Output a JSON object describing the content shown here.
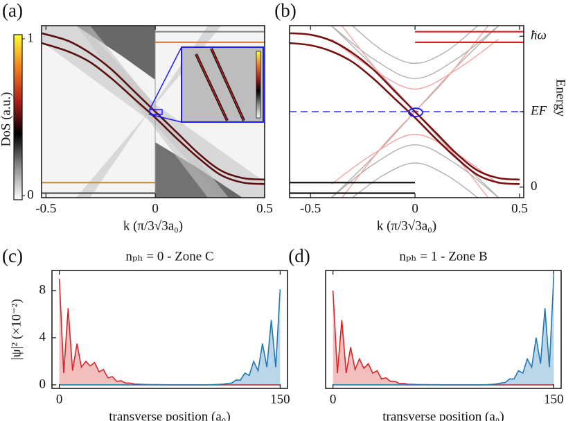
{
  "chart_data": [
    {
      "type": "heatmap-bands",
      "panel_label": "(a)",
      "xlabel": "k (π/3√3a₀)",
      "xlim": [
        -0.52,
        0.5
      ],
      "xticks": [
        -0.5,
        0,
        0.5
      ],
      "ylim": [
        -0.07,
        1.07
      ],
      "colorbar": {
        "label": "DoS (a.u.)",
        "lim": [
          0,
          1
        ],
        "ticks": [
          0,
          1
        ],
        "colors": [
          "#ffffff",
          "#8c8c8c",
          "#000000",
          "#b01e1a",
          "#f08020",
          "#ffff30"
        ]
      },
      "series": [
        {
          "color": "#5a1010",
          "x": [
            -0.52,
            -0.4,
            -0.3,
            -0.2,
            -0.1,
            0,
            0.1,
            0.2,
            0.3,
            0.4,
            0.5
          ],
          "values": [
            1.02,
            0.97,
            0.89,
            0.78,
            0.64,
            0.5,
            0.36,
            0.22,
            0.11,
            0.06,
            0.05
          ]
        },
        {
          "color": "#5a1010",
          "x": [
            -0.52,
            -0.4,
            -0.3,
            -0.2,
            -0.1,
            0,
            0.1,
            0.2,
            0.3,
            0.4,
            0.5
          ],
          "values": [
            0.955,
            0.9,
            0.83,
            0.72,
            0.59,
            0.46,
            0.32,
            0.19,
            0.08,
            0.03,
            0.02
          ]
        },
        {
          "color": "#888888",
          "x": [
            0,
            0.5
          ],
          "values": [
            1.03,
            1.03
          ]
        },
        {
          "color": "#e08040",
          "x": [
            0,
            0.5
          ],
          "values": [
            0.96,
            0.96
          ]
        },
        {
          "color": "#d09030",
          "x": [
            -0.52,
            0
          ],
          "values": [
            0.03,
            0.03
          ]
        },
        {
          "color": "#555555",
          "x": [
            -0.52,
            0
          ],
          "values": [
            -0.04,
            -0.04
          ]
        }
      ]
    },
    {
      "type": "line",
      "panel_label": "(b)",
      "xlabel": "k (π/3√3a₀)",
      "ylabel": "Energy",
      "xlim": [
        -0.6,
        0.52
      ],
      "xticks": [
        -0.5,
        0,
        0.5
      ],
      "ylim": [
        -0.07,
        1.07
      ],
      "yticks": [
        0,
        {
          "value": 0.5,
          "label": "EF"
        },
        {
          "value": 1,
          "label": "ħω"
        }
      ],
      "hline": {
        "y": 0.5,
        "color": "#6464ff"
      },
      "series": [
        {
          "color": "#b0b0b0",
          "x": [
            -0.4,
            -0.2,
            0,
            0.2,
            0.4
          ],
          "values": [
            1.07,
            0.8,
            0.5,
            0.2,
            -0.07
          ]
        },
        {
          "color": "#b0b0b0",
          "x": [
            -0.4,
            -0.2,
            0,
            0.2,
            0.4
          ],
          "values": [
            -0.07,
            0.2,
            0.5,
            0.8,
            1.07
          ]
        },
        {
          "color": "#b0b0b0",
          "x": [
            -0.4,
            -0.2,
            0,
            0.2,
            0.4
          ],
          "values": [
            -0.07,
            0.15,
            0.28,
            0.15,
            -0.07
          ]
        },
        {
          "color": "#b0b0b0",
          "x": [
            -0.4,
            -0.2,
            0,
            0.2,
            0.4
          ],
          "values": [
            1.07,
            0.85,
            0.72,
            0.85,
            1.07
          ]
        },
        {
          "color": "#b0b0b0",
          "x": [
            -0.3,
            -0.15,
            0,
            0.15,
            0.3
          ],
          "values": [
            1.07,
            0.9,
            0.82,
            0.9,
            1.07
          ]
        },
        {
          "color": "#b0b0b0",
          "x": [
            -0.3,
            -0.15,
            0,
            0.15,
            0.3
          ],
          "values": [
            -0.07,
            0.08,
            0.16,
            0.08,
            -0.07
          ]
        },
        {
          "color": "#f4a4a4",
          "x": [
            -0.35,
            -0.15,
            0,
            0.15,
            0.35
          ],
          "values": [
            -0.07,
            0.28,
            0.5,
            0.72,
            1.07
          ]
        },
        {
          "color": "#f4a4a4",
          "x": [
            -0.35,
            -0.15,
            0,
            0.15,
            0.35
          ],
          "values": [
            1.07,
            0.72,
            0.5,
            0.28,
            -0.07
          ]
        },
        {
          "color": "#f4a4a4",
          "x": [
            -0.4,
            -0.2,
            0,
            0.2,
            0.4
          ],
          "values": [
            0.02,
            0.22,
            0.35,
            0.22,
            0.02
          ]
        },
        {
          "color": "#f4a4a4",
          "x": [
            -0.4,
            -0.2,
            0,
            0.2,
            0.4
          ],
          "values": [
            0.98,
            0.78,
            0.65,
            0.78,
            0.98
          ]
        },
        {
          "color": "#111111",
          "x": [
            -0.6,
            0
          ],
          "values": [
            0.03,
            0.03
          ]
        },
        {
          "color": "#111111",
          "x": [
            -0.6,
            0
          ],
          "values": [
            -0.04,
            -0.04
          ]
        },
        {
          "color": "#e02020",
          "x": [
            0,
            0.52
          ],
          "values": [
            1.03,
            1.03
          ]
        },
        {
          "color": "#e02020",
          "x": [
            0,
            0.52
          ],
          "values": [
            0.96,
            0.96
          ]
        },
        {
          "color": "#7a1010",
          "x": [
            -0.6,
            -0.5,
            -0.4,
            -0.3,
            -0.2,
            -0.1,
            0,
            0.1,
            0.2,
            0.3,
            0.4,
            0.5
          ],
          "values": [
            1.02,
            1.01,
            0.97,
            0.89,
            0.78,
            0.64,
            0.5,
            0.36,
            0.22,
            0.11,
            0.06,
            0.05
          ]
        },
        {
          "color": "#7a1010",
          "x": [
            -0.6,
            -0.5,
            -0.4,
            -0.3,
            -0.2,
            -0.1,
            0,
            0.1,
            0.2,
            0.3,
            0.4,
            0.5
          ],
          "values": [
            0.955,
            0.94,
            0.9,
            0.83,
            0.72,
            0.59,
            0.46,
            0.32,
            0.19,
            0.08,
            0.03,
            0.02
          ]
        }
      ]
    },
    {
      "type": "area",
      "panel_label": "(c)",
      "title": "nₚₕ = 0 - Zone C",
      "xlabel": "transverse position (a₀)",
      "ylabel": "|ψ|² (×10⁻²)",
      "xlim": [
        -5,
        155
      ],
      "xticks": [
        0,
        150
      ],
      "ylim": [
        -0.3,
        9.7
      ],
      "yticks": [
        0,
        4,
        8
      ],
      "x": [
        0,
        3,
        6,
        9,
        12,
        15,
        18,
        21,
        24,
        27,
        30,
        33,
        36,
        39,
        42,
        45,
        48,
        51,
        54,
        57,
        60,
        63,
        66,
        69,
        72,
        75,
        78,
        81,
        84,
        87,
        90,
        93,
        96,
        99,
        102,
        105,
        108,
        111,
        114,
        117,
        120,
        123,
        126,
        129,
        132,
        135,
        138,
        141,
        144,
        147,
        150
      ],
      "series": [
        {
          "color": "#d62728",
          "values": [
            9.0,
            1.0,
            6.5,
            1.2,
            3.5,
            1.5,
            2.0,
            1.6,
            1.9,
            1.1,
            1.3,
            0.6,
            0.7,
            0.3,
            0.35,
            0.15,
            0.15,
            0.08,
            0.06,
            0.04,
            0.03,
            0.02,
            0.02,
            0.01,
            0.01,
            0,
            0,
            0,
            0,
            0,
            0,
            0,
            0,
            0,
            0,
            0,
            0,
            0,
            0,
            0,
            0,
            0,
            0,
            0,
            0,
            0,
            0,
            0,
            0,
            0,
            0
          ]
        },
        {
          "color": "#1f77b4",
          "values": [
            0,
            0,
            0,
            0,
            0,
            0,
            0,
            0,
            0,
            0,
            0,
            0,
            0,
            0,
            0,
            0,
            0,
            0,
            0,
            0,
            0,
            0,
            0,
            0,
            0,
            0,
            0,
            0,
            0,
            0,
            0,
            0,
            0,
            0,
            0.01,
            0.02,
            0.04,
            0.06,
            0.12,
            0.15,
            0.4,
            0.4,
            1.0,
            0.8,
            2.0,
            1.2,
            3.5,
            1.5,
            5.5,
            1.5,
            8.1
          ]
        }
      ]
    },
    {
      "type": "area",
      "panel_label": "(d)",
      "title": "nₚₕ = 1 - Zone B",
      "xlabel": "transverse position (a₀)",
      "xlim": [
        -5,
        155
      ],
      "xticks": [
        0,
        150
      ],
      "ylim": [
        -0.3,
        9.7
      ],
      "x": [
        0,
        3,
        6,
        9,
        12,
        15,
        18,
        21,
        24,
        27,
        30,
        33,
        36,
        39,
        42,
        45,
        48,
        51,
        54,
        57,
        60,
        63,
        66,
        69,
        72,
        75,
        78,
        81,
        84,
        87,
        90,
        93,
        96,
        99,
        102,
        105,
        108,
        111,
        114,
        117,
        120,
        123,
        126,
        129,
        132,
        135,
        138,
        141,
        144,
        147,
        150
      ],
      "series": [
        {
          "color": "#d62728",
          "values": [
            8.0,
            1.0,
            5.5,
            1.0,
            3.2,
            1.3,
            2.2,
            1.4,
            1.8,
            1.0,
            1.2,
            0.5,
            0.6,
            0.3,
            0.3,
            0.12,
            0.12,
            0.06,
            0.05,
            0.03,
            0.02,
            0.02,
            0.01,
            0.01,
            0.01,
            0,
            0,
            0,
            0,
            0,
            0,
            0,
            0,
            0,
            0,
            0,
            0,
            0,
            0,
            0,
            0,
            0,
            0,
            0,
            0,
            0,
            0,
            0,
            0,
            0,
            0
          ]
        },
        {
          "color": "#1f77b4",
          "values": [
            0,
            0,
            0,
            0,
            0,
            0,
            0,
            0,
            0,
            0,
            0,
            0,
            0,
            0,
            0,
            0,
            0,
            0,
            0,
            0,
            0,
            0,
            0,
            0,
            0,
            0,
            0,
            0,
            0,
            0,
            0,
            0,
            0,
            0,
            0.01,
            0.02,
            0.04,
            0.08,
            0.15,
            0.2,
            0.5,
            0.5,
            1.2,
            1.0,
            2.2,
            1.5,
            4.0,
            1.8,
            6.5,
            1.5,
            9.3
          ]
        }
      ]
    }
  ]
}
